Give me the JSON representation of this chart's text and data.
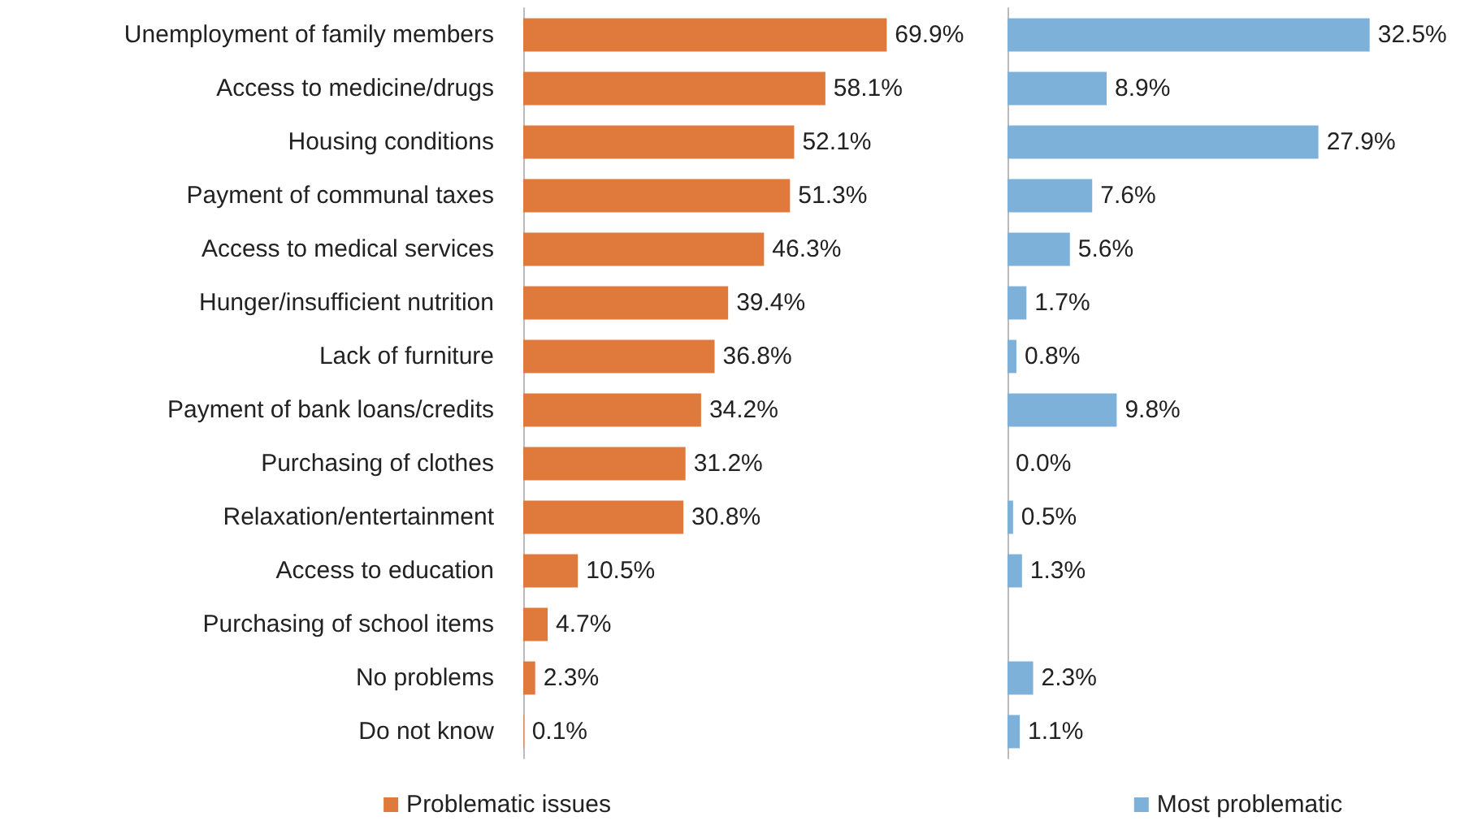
{
  "chart_data": [
    {
      "type": "bar",
      "orientation": "horizontal",
      "tick_labels": "y",
      "legend": "bottom",
      "categories": [
        "Unemployment of family members",
        "Access to medicine/drugs",
        "Housing conditions",
        "Payment of communal taxes",
        "Access to medical services",
        "Hunger/insufficient nutrition",
        "Lack of furniture",
        "Payment of bank loans/credits",
        "Purchasing of clothes",
        "Relaxation/entertainment",
        "Access to education",
        "Purchasing of school items",
        "No problems",
        "Do not know"
      ],
      "series": [
        {
          "name": "Problematic issues",
          "color": "#e07a3c",
          "values": [
            69.9,
            58.1,
            52.1,
            51.3,
            46.3,
            39.4,
            36.8,
            34.2,
            31.2,
            30.8,
            10.5,
            4.7,
            2.3,
            0.1
          ],
          "value_labels": [
            "69.9%",
            "58.1%",
            "52.1%",
            "51.3%",
            "46.3%",
            "39.4%",
            "36.8%",
            "34.2%",
            "31.2%",
            "30.8%",
            "10.5%",
            "4.7%",
            "2.3%",
            "0.1%"
          ]
        }
      ]
    },
    {
      "type": "bar",
      "orientation": "horizontal",
      "tick_labels": false,
      "legend": "bottom",
      "categories": [
        null,
        null,
        null,
        null,
        null,
        null,
        null,
        null,
        null,
        null,
        null,
        null,
        null,
        null
      ],
      "series": [
        {
          "name": "Most problematic",
          "color": "#7eb1d9",
          "values": [
            32.5,
            8.9,
            27.9,
            7.6,
            5.6,
            1.7,
            0.8,
            9.8,
            0.0,
            0.5,
            1.3,
            null,
            2.3,
            1.1
          ],
          "value_labels": [
            "32.5%",
            "8.9%",
            "27.9%",
            "7.6%",
            "5.6%",
            "1.7%",
            "0.8%",
            "9.8%",
            "0.0%",
            "0.5%",
            "1.3%",
            null,
            "2.3%",
            "1.1%"
          ]
        }
      ]
    }
  ]
}
